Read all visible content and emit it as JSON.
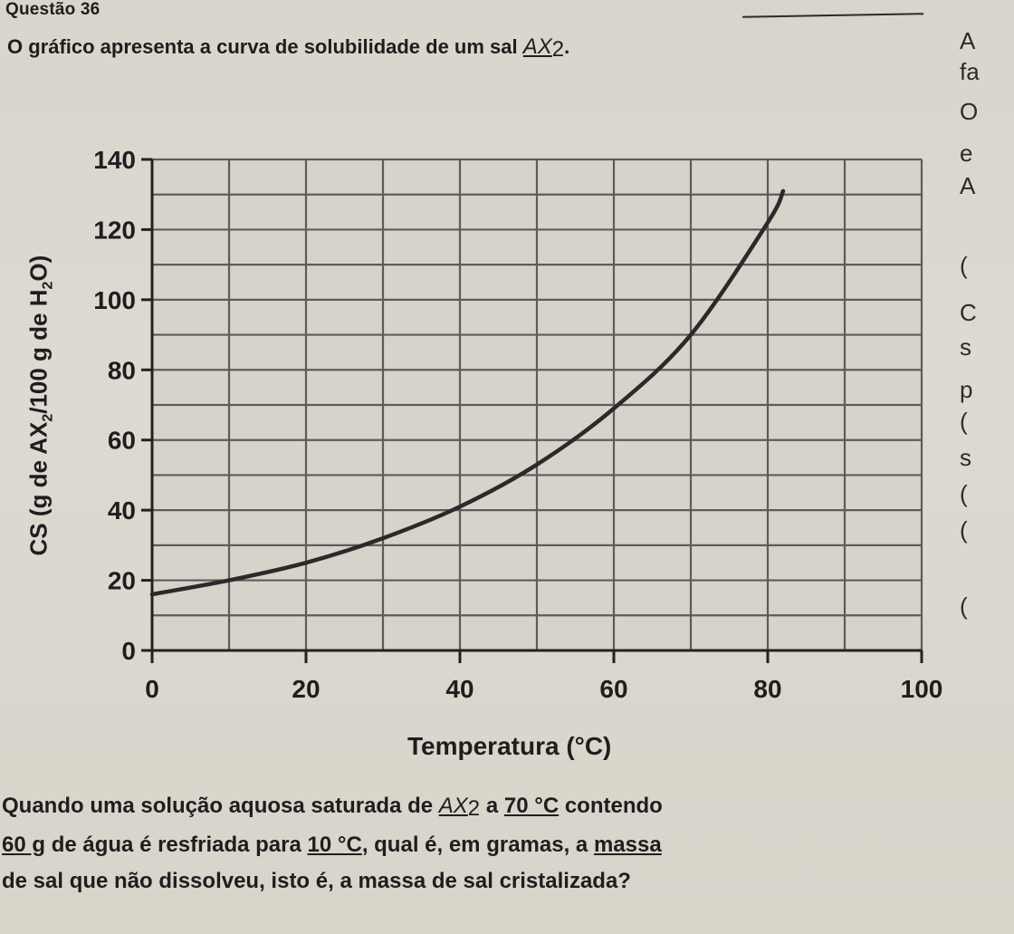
{
  "header": {
    "question_number": "Questão 36"
  },
  "intro": {
    "text": "O gráfico apresenta a curva de solubilidade de um sal",
    "formula_base": "AX",
    "formula_sub": "2",
    "formula_end": "."
  },
  "side_fragments": [
    "A",
    "fa",
    "O",
    "e",
    "A",
    "(",
    "C",
    "s",
    "p",
    "(",
    "s",
    "(",
    "(",
    "("
  ],
  "chart_data": {
    "type": "line",
    "title": "",
    "xlabel": "Temperatura (°C)",
    "ylabel_main": "CS (g de AX",
    "ylabel_sub1": "2",
    "ylabel_mid": "/100 g de H",
    "ylabel_sub2": "2",
    "ylabel_end": "O)",
    "xlim": [
      0,
      100
    ],
    "ylim": [
      0,
      140
    ],
    "x_ticks": [
      0,
      20,
      40,
      60,
      80,
      100
    ],
    "y_ticks": [
      0,
      20,
      40,
      60,
      80,
      100,
      120,
      140
    ],
    "grid": true,
    "series": [
      {
        "x": [
          0,
          10,
          20,
          30,
          40,
          50,
          60,
          70,
          80,
          82
        ],
        "y": [
          16,
          20,
          25,
          32,
          41,
          53,
          69,
          90,
          122,
          131
        ]
      }
    ]
  },
  "question": {
    "line1_a": "Quando uma solução aquosa saturada de",
    "line1_formula_base": "AX",
    "line1_formula_sub": "2",
    "line1_b": "a",
    "line1_temp": "70 °C",
    "line1_c": "contendo",
    "line2_a": "60 g",
    "line2_b": "de água é resfriada para",
    "line2_temp": "10 °C",
    "line2_c": ", qual é, em gramas, a",
    "line2_d": "massa",
    "line3": "de sal que não dissolveu, isto é, a massa de sal cristalizada?"
  }
}
